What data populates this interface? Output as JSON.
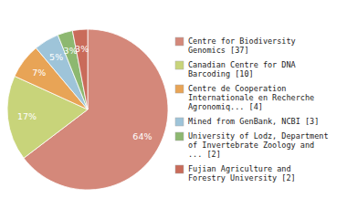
{
  "chart_data": {
    "type": "pie",
    "categories": [
      "Centre for Biodiversity\nGenomics [37]",
      "Canadian Centre for DNA\nBarcoding [10]",
      "Centre de Cooperation\nInternationale en Recherche\nAgronomiq... [4]",
      "Mined from GenBank, NCBI [3]",
      "University of Lodz, Department\nof Invertebrate Zoology and\n... [2]",
      "Fujian Agriculture and\nForestry University [2]"
    ],
    "values": [
      64,
      17,
      7,
      5,
      3,
      3
    ],
    "value_labels": [
      "64%",
      "17%",
      "7%",
      "5%",
      "3%",
      "3%"
    ],
    "colors": [
      "#d4887a",
      "#c8d47a",
      "#e8a456",
      "#9ec4d9",
      "#8db870",
      "#c96b5a"
    ],
    "data_labels": true,
    "legend": "right"
  }
}
